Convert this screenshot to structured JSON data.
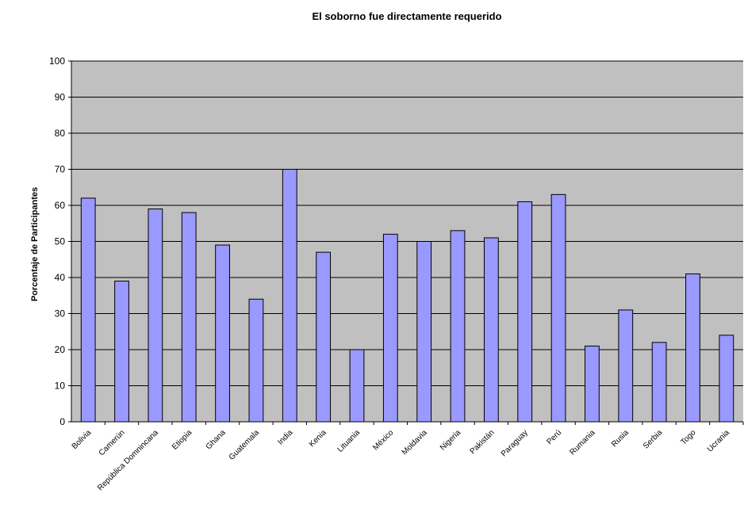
{
  "chart_data": {
    "type": "bar",
    "title": "El soborno fue directamente requerido",
    "xlabel": "",
    "ylabel": "Porcentaje de Participantes",
    "ylim": [
      0,
      100
    ],
    "yticks": [
      0,
      10,
      20,
      30,
      40,
      50,
      60,
      70,
      80,
      90,
      100
    ],
    "grid": true,
    "legend": "none",
    "categories": [
      "Bolivia",
      "Camerún",
      "República Domnincana",
      "Etiopia",
      "Ghana",
      "Guatemala",
      "India",
      "Kenia",
      "Lituania",
      "México",
      "Moldavia",
      "Nigeria",
      "Pakistán",
      "Paraguay",
      "Perú",
      "Rumania",
      "Rusia",
      "Serbia",
      "Togo",
      "Ucrania"
    ],
    "values": [
      62,
      39,
      59,
      58,
      49,
      34,
      70,
      47,
      20,
      52,
      50,
      53,
      51,
      61,
      63,
      21,
      31,
      22,
      41,
      24
    ],
    "colors": {
      "plot_background": "#c0c0c0",
      "bar_fill": "#9999ff",
      "bar_stroke": "#000000",
      "gridline": "#000000"
    }
  }
}
